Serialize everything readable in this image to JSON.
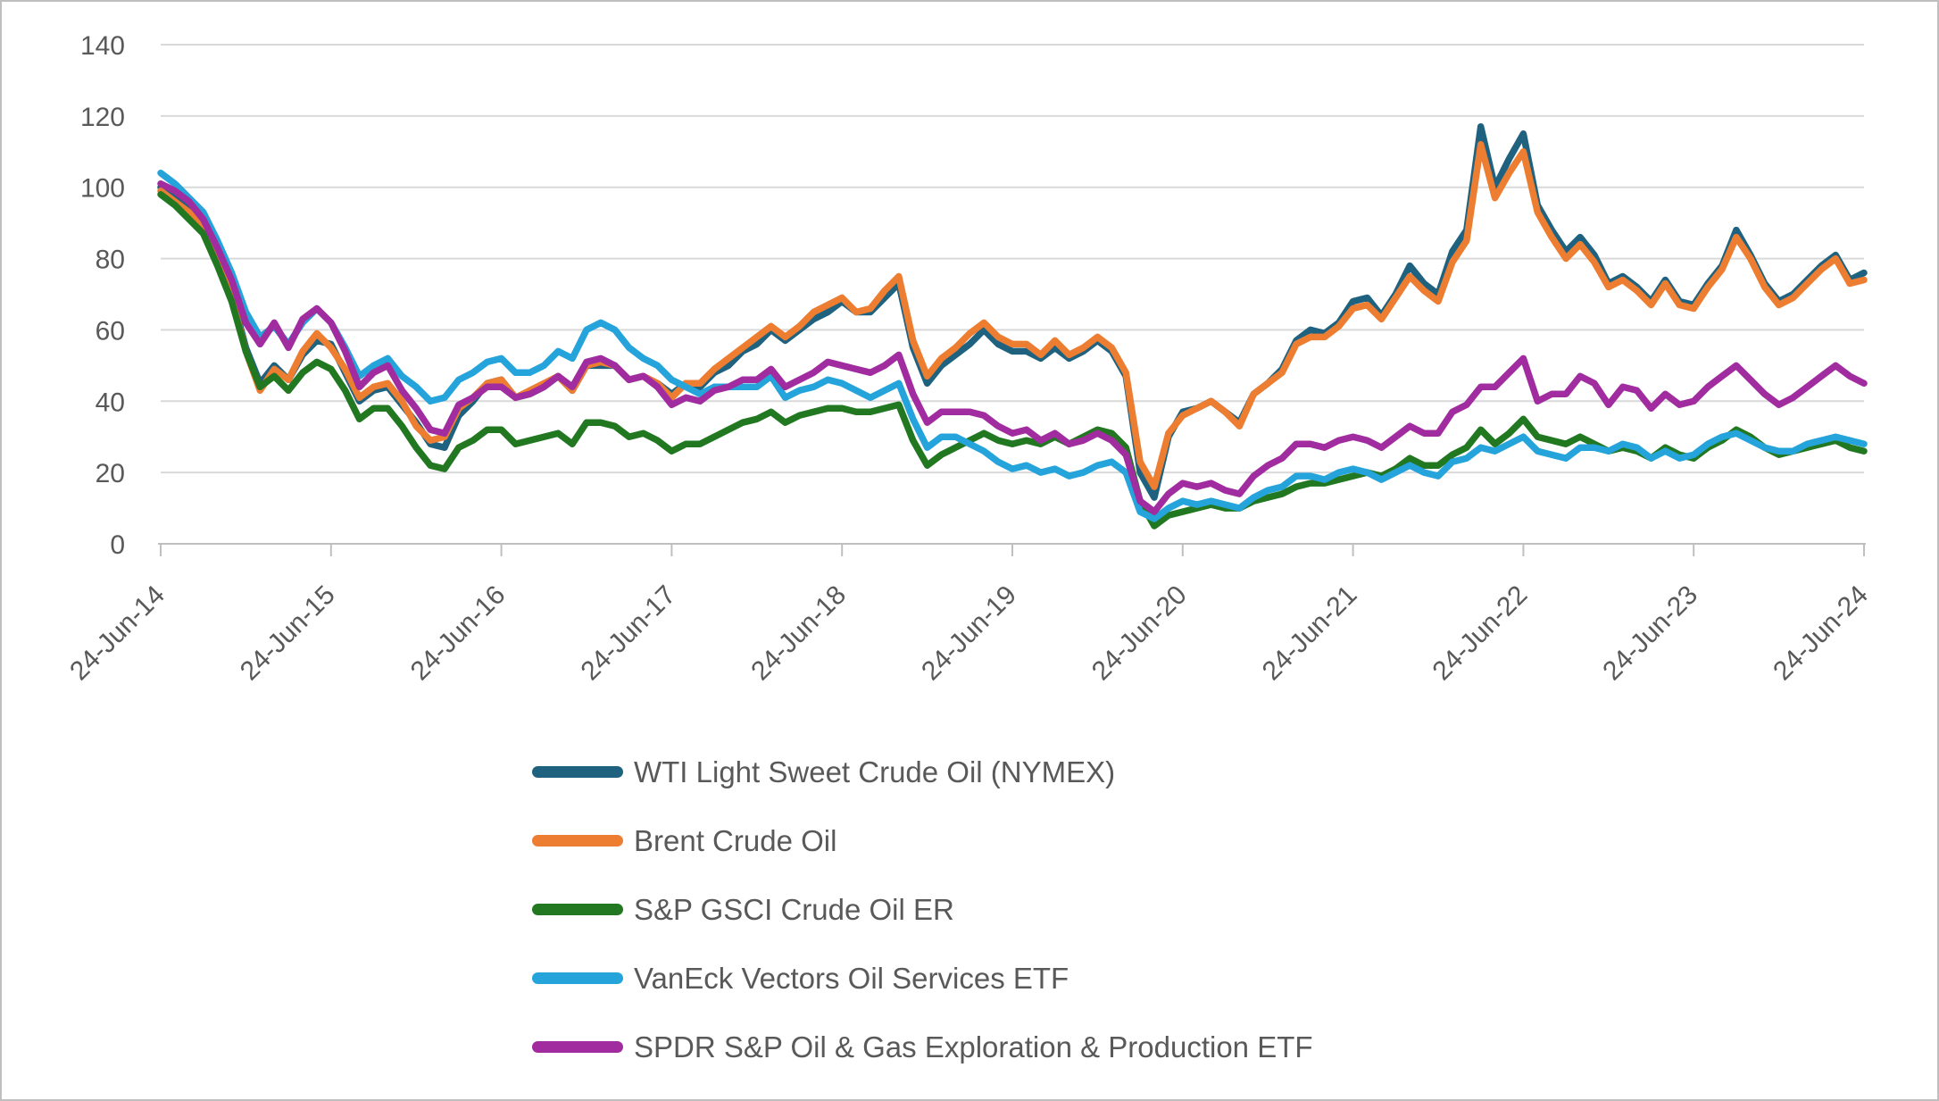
{
  "figure": {
    "background_color": "#FFFFFF",
    "border_color": "#BFBFBF"
  },
  "chart_data": {
    "type": "line",
    "title": "",
    "xlabel": "",
    "ylabel": "",
    "ylim": [
      0,
      140
    ],
    "grid": "horizontal",
    "legend_position": "bottom-left",
    "gridline_color": "#D9D9D9",
    "axis_line_color": "#BFBFBF",
    "tick_label_color": "#595959",
    "legend_text_color": "#595959",
    "y_tick_labels": [
      "0",
      "20",
      "40",
      "60",
      "80",
      "100",
      "120",
      "140"
    ],
    "y_tick_values": [
      0,
      20,
      40,
      60,
      80,
      100,
      120,
      140
    ],
    "x_tick_labels": [
      "24-Jun-14",
      "24-Jun-15",
      "24-Jun-16",
      "24-Jun-17",
      "24-Jun-18",
      "24-Jun-19",
      "24-Jun-20",
      "24-Jun-21",
      "24-Jun-22",
      "24-Jun-23",
      "24-Jun-24"
    ],
    "x_sampling": "monthly points estimated from the plot, 24-Jun-2014 to 24-Jun-2024, all series indexed to ~100 at start",
    "series": [
      {
        "name": "WTI Light Sweet Crude Oil (NYMEX)",
        "color": "#1F627F",
        "values": [
          100,
          97,
          94,
          90,
          80,
          70,
          55,
          45,
          50,
          46,
          53,
          57,
          56,
          48,
          40,
          43,
          44,
          39,
          34,
          28,
          27,
          36,
          40,
          45,
          46,
          41,
          42,
          44,
          47,
          43,
          50,
          50,
          50,
          46,
          47,
          45,
          42,
          45,
          44,
          48,
          50,
          54,
          56,
          60,
          57,
          60,
          63,
          65,
          68,
          65,
          65,
          69,
          73,
          55,
          45,
          50,
          53,
          56,
          60,
          56,
          54,
          54,
          52,
          55,
          52,
          54,
          57,
          54,
          47,
          20,
          13,
          30,
          37,
          38,
          40,
          37,
          34,
          42,
          45,
          49,
          57,
          60,
          59,
          62,
          68,
          69,
          64,
          70,
          78,
          73,
          70,
          82,
          88,
          117,
          100,
          108,
          115,
          95,
          88,
          82,
          86,
          81,
          73,
          75,
          72,
          68,
          74,
          68,
          67,
          73,
          78,
          88,
          81,
          73,
          68,
          70,
          74,
          78,
          81,
          74,
          76
        ]
      },
      {
        "name": "Brent Crude Oil",
        "color": "#ED7D31",
        "values": [
          99,
          96,
          93,
          88,
          79,
          69,
          54,
          43,
          49,
          46,
          54,
          59,
          55,
          49,
          41,
          44,
          45,
          40,
          33,
          29,
          30,
          38,
          41,
          45,
          46,
          41,
          43,
          45,
          47,
          43,
          50,
          51,
          50,
          46,
          47,
          45,
          41,
          45,
          45,
          49,
          52,
          55,
          58,
          61,
          58,
          61,
          65,
          67,
          69,
          65,
          66,
          71,
          75,
          57,
          47,
          52,
          55,
          59,
          62,
          58,
          56,
          56,
          53,
          57,
          53,
          55,
          58,
          55,
          48,
          23,
          16,
          31,
          36,
          38,
          40,
          37,
          33,
          42,
          45,
          48,
          56,
          58,
          58,
          61,
          66,
          67,
          63,
          69,
          75,
          71,
          68,
          79,
          85,
          112,
          97,
          104,
          110,
          93,
          86,
          80,
          84,
          79,
          72,
          74,
          71,
          67,
          73,
          67,
          66,
          72,
          77,
          86,
          80,
          72,
          67,
          69,
          73,
          77,
          80,
          73,
          74
        ]
      },
      {
        "name": "S&P GSCI Crude Oil ER",
        "color": "#217821",
        "values": [
          98,
          95,
          91,
          87,
          78,
          68,
          54,
          44,
          47,
          43,
          48,
          51,
          49,
          43,
          35,
          38,
          38,
          33,
          27,
          22,
          21,
          27,
          29,
          32,
          32,
          28,
          29,
          30,
          31,
          28,
          34,
          34,
          33,
          30,
          31,
          29,
          26,
          28,
          28,
          30,
          32,
          34,
          35,
          37,
          34,
          36,
          37,
          38,
          38,
          37,
          37,
          38,
          39,
          29,
          22,
          25,
          27,
          29,
          31,
          29,
          28,
          29,
          28,
          30,
          28,
          30,
          32,
          31,
          27,
          12,
          5,
          8,
          9,
          10,
          11,
          10,
          10,
          12,
          13,
          14,
          16,
          17,
          17,
          18,
          19,
          20,
          19,
          21,
          24,
          22,
          22,
          25,
          27,
          32,
          28,
          31,
          35,
          30,
          29,
          28,
          30,
          28,
          26,
          27,
          26,
          24,
          27,
          25,
          24,
          27,
          29,
          32,
          30,
          27,
          25,
          26,
          27,
          28,
          29,
          27,
          26
        ]
      },
      {
        "name": "VanEck Vectors Oil Services ETF",
        "color": "#25A3DB",
        "values": [
          104,
          101,
          97,
          93,
          85,
          76,
          65,
          58,
          61,
          56,
          62,
          66,
          62,
          55,
          47,
          50,
          52,
          47,
          44,
          40,
          41,
          46,
          48,
          51,
          52,
          48,
          48,
          50,
          54,
          52,
          60,
          62,
          60,
          55,
          52,
          50,
          46,
          44,
          42,
          44,
          44,
          44,
          44,
          47,
          41,
          43,
          44,
          46,
          45,
          43,
          41,
          43,
          45,
          35,
          27,
          30,
          30,
          28,
          26,
          23,
          21,
          22,
          20,
          21,
          19,
          20,
          22,
          23,
          20,
          9,
          7,
          10,
          12,
          11,
          12,
          11,
          10,
          13,
          15,
          16,
          19,
          19,
          18,
          20,
          21,
          20,
          18,
          20,
          22,
          20,
          19,
          23,
          24,
          27,
          26,
          28,
          30,
          26,
          25,
          24,
          27,
          27,
          26,
          28,
          27,
          24,
          26,
          24,
          25,
          28,
          30,
          31,
          29,
          27,
          26,
          26,
          28,
          29,
          30,
          29,
          28
        ]
      },
      {
        "name": "SPDR S&P Oil & Gas Exploration & Production ETF",
        "color": "#A12CA0",
        "values": [
          101,
          99,
          96,
          91,
          83,
          74,
          62,
          56,
          62,
          55,
          63,
          66,
          62,
          54,
          44,
          48,
          50,
          43,
          38,
          32,
          31,
          39,
          41,
          44,
          44,
          41,
          42,
          44,
          47,
          44,
          51,
          52,
          50,
          46,
          47,
          44,
          39,
          41,
          40,
          43,
          44,
          46,
          46,
          49,
          44,
          46,
          48,
          51,
          50,
          49,
          48,
          50,
          53,
          42,
          34,
          37,
          37,
          37,
          36,
          33,
          31,
          32,
          29,
          31,
          28,
          29,
          31,
          29,
          25,
          12,
          9,
          14,
          17,
          16,
          17,
          15,
          14,
          19,
          22,
          24,
          28,
          28,
          27,
          29,
          30,
          29,
          27,
          30,
          33,
          31,
          31,
          37,
          39,
          44,
          44,
          48,
          52,
          40,
          42,
          42,
          47,
          45,
          39,
          44,
          43,
          38,
          42,
          39,
          40,
          44,
          47,
          50,
          46,
          42,
          39,
          41,
          44,
          47,
          50,
          47,
          45
        ]
      }
    ]
  }
}
